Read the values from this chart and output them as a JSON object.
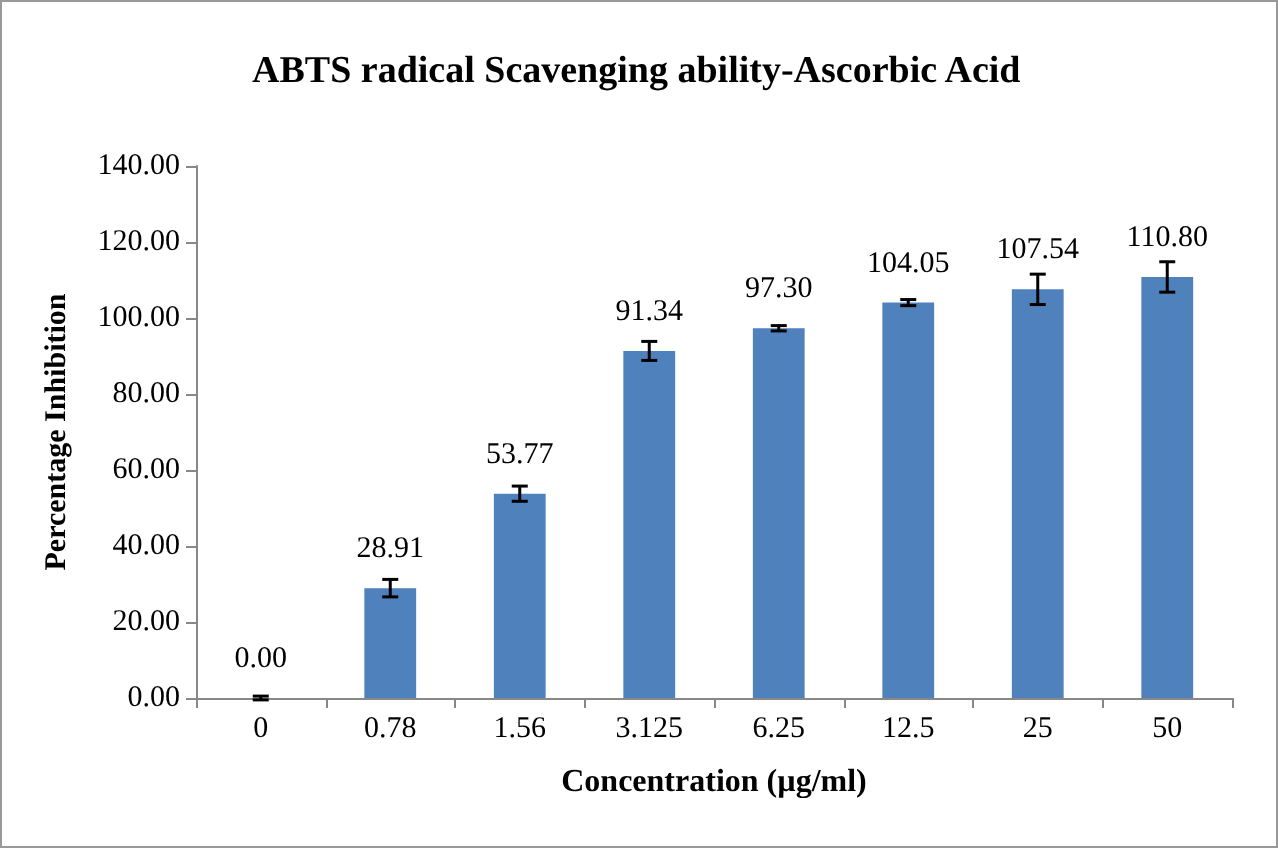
{
  "chart_data": {
    "type": "bar",
    "title": "ABTS radical Scavenging ability-Ascorbic Acid",
    "xlabel": "Concentration (µg/ml)",
    "ylabel": "Percentage Inhibition",
    "categories": [
      "0",
      "0.78",
      "1.56",
      "3.125",
      "6.25",
      "12.5",
      "25",
      "50"
    ],
    "values": [
      0,
      28.91,
      53.77,
      91.34,
      97.3,
      104.05,
      107.54,
      110.8
    ],
    "value_labels": [
      "0.00",
      "28.91",
      "53.77",
      "91.34",
      "97.30",
      "104.05",
      "107.54",
      "110.80"
    ],
    "errors": [
      0.5,
      2.3,
      2,
      2.5,
      0.7,
      0.8,
      4,
      4
    ],
    "color": "#4f81bd",
    "ylim": [
      0,
      140
    ],
    "yticks": [
      {
        "value": 0,
        "label": "0.00"
      },
      {
        "value": 20,
        "label": "20.00"
      },
      {
        "value": 40,
        "label": "40.00"
      },
      {
        "value": 60,
        "label": "60.00"
      },
      {
        "value": 80,
        "label": "80.00"
      },
      {
        "value": 100,
        "label": "100.00"
      },
      {
        "value": 120,
        "label": "120.00"
      },
      {
        "value": 140,
        "label": "140.00"
      }
    ],
    "grid": false
  }
}
